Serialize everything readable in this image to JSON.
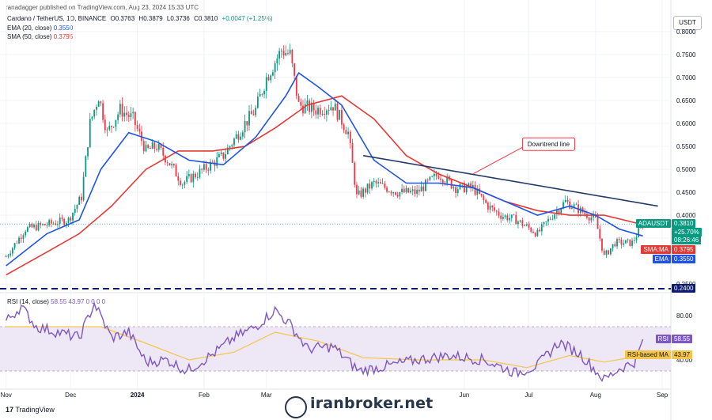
{
  "header": {
    "publisher": "ranadagger published on TradingView.com, Aug 23, 2024 15:33 UTC",
    "symbol": "Cardano / TetherUS, 1D, BINANCE",
    "open": "O0.3763",
    "high": "H0.3879",
    "low": "L0.3736",
    "close": "C0.3810",
    "change": "+0.0047 (+1.25%)",
    "ema_label": "EMA (20, close)",
    "ema_value": "0.3550",
    "sma_label": "SMA (50, close)",
    "sma_value": "0.3795",
    "currency_button": "USDT"
  },
  "colors": {
    "up": "#089981",
    "down": "#f23645",
    "ema": "#1e53e5",
    "sma": "#e53935",
    "rsi": "#7e57c2",
    "rsi_ma": "#f5c64a",
    "trendline": "#233b6b",
    "support": "#0c1b6e"
  },
  "chart_data": [
    {
      "type": "line",
      "title": "Cardano / TetherUS, 1D, BINANCE",
      "y_ticks": [
        "0.8000",
        "0.7500",
        "0.7000",
        "0.6500",
        "0.6000",
        "0.5500",
        "0.5000",
        "0.4500",
        "0.4000",
        "0.3500",
        "0.2500"
      ],
      "x_ticks": [
        "Nov",
        "Dec",
        "2024",
        "Feb",
        "Mar",
        "Jun",
        "Jul",
        "Aug",
        "Sep"
      ],
      "ylim": [
        0.24,
        0.8
      ],
      "price_path": [
        [
          "2023-11-01",
          0.31
        ],
        [
          "2023-11-10",
          0.37
        ],
        [
          "2023-11-20",
          0.38
        ],
        [
          "2023-11-30",
          0.39
        ],
        [
          "2023-12-06",
          0.44
        ],
        [
          "2023-12-10",
          0.6
        ],
        [
          "2023-12-14",
          0.66
        ],
        [
          "2023-12-18",
          0.58
        ],
        [
          "2023-12-24",
          0.63
        ],
        [
          "2023-12-30",
          0.61
        ],
        [
          "2024-01-05",
          0.54
        ],
        [
          "2024-01-10",
          0.55
        ],
        [
          "2024-01-15",
          0.52
        ],
        [
          "2024-01-22",
          0.47
        ],
        [
          "2024-02-01",
          0.5
        ],
        [
          "2024-02-10",
          0.53
        ],
        [
          "2024-02-20",
          0.6
        ],
        [
          "2024-02-25",
          0.63
        ],
        [
          "2024-03-01",
          0.7
        ],
        [
          "2024-03-08",
          0.76
        ],
        [
          "2024-03-12",
          0.75
        ],
        [
          "2024-03-16",
          0.64
        ],
        [
          "2024-03-24",
          0.63
        ],
        [
          "2024-04-01",
          0.64
        ],
        [
          "2024-04-08",
          0.58
        ],
        [
          "2024-04-12",
          0.44
        ],
        [
          "2024-04-20",
          0.47
        ],
        [
          "2024-05-01",
          0.45
        ],
        [
          "2024-05-10",
          0.45
        ],
        [
          "2024-05-20",
          0.49
        ],
        [
          "2024-05-28",
          0.46
        ],
        [
          "2024-06-05",
          0.46
        ],
        [
          "2024-06-12",
          0.42
        ],
        [
          "2024-06-18",
          0.4
        ],
        [
          "2024-06-25",
          0.39
        ],
        [
          "2024-07-05",
          0.36
        ],
        [
          "2024-07-12",
          0.4
        ],
        [
          "2024-07-18",
          0.43
        ],
        [
          "2024-07-25",
          0.41
        ],
        [
          "2024-08-01",
          0.39
        ],
        [
          "2024-08-05",
          0.31
        ],
        [
          "2024-08-10",
          0.34
        ],
        [
          "2024-08-18",
          0.34
        ],
        [
          "2024-08-23",
          0.381
        ]
      ],
      "series": [
        {
          "name": "EMA",
          "points": [
            [
              "2023-11-01",
              0.29
            ],
            [
              "2023-11-20",
              0.36
            ],
            [
              "2023-12-05",
              0.39
            ],
            [
              "2023-12-15",
              0.5
            ],
            [
              "2023-12-28",
              0.58
            ],
            [
              "2024-01-10",
              0.56
            ],
            [
              "2024-01-25",
              0.52
            ],
            [
              "2024-02-10",
              0.51
            ],
            [
              "2024-02-25",
              0.57
            ],
            [
              "2024-03-10",
              0.66
            ],
            [
              "2024-03-16",
              0.71
            ],
            [
              "2024-03-25",
              0.68
            ],
            [
              "2024-04-05",
              0.64
            ],
            [
              "2024-04-20",
              0.52
            ],
            [
              "2024-05-05",
              0.47
            ],
            [
              "2024-05-20",
              0.47
            ],
            [
              "2024-06-05",
              0.46
            ],
            [
              "2024-06-20",
              0.43
            ],
            [
              "2024-07-05",
              0.4
            ],
            [
              "2024-07-20",
              0.42
            ],
            [
              "2024-08-01",
              0.4
            ],
            [
              "2024-08-12",
              0.37
            ],
            [
              "2024-08-23",
              0.355
            ]
          ]
        },
        {
          "name": "SMA",
          "points": [
            [
              "2023-11-01",
              0.27
            ],
            [
              "2023-11-20",
              0.32
            ],
            [
              "2023-12-05",
              0.36
            ],
            [
              "2023-12-20",
              0.42
            ],
            [
              "2024-01-05",
              0.5
            ],
            [
              "2024-01-20",
              0.54
            ],
            [
              "2024-02-05",
              0.54
            ],
            [
              "2024-02-20",
              0.55
            ],
            [
              "2024-03-05",
              0.59
            ],
            [
              "2024-03-20",
              0.64
            ],
            [
              "2024-04-05",
              0.66
            ],
            [
              "2024-04-20",
              0.61
            ],
            [
              "2024-05-05",
              0.53
            ],
            [
              "2024-05-20",
              0.49
            ],
            [
              "2024-06-05",
              0.46
            ],
            [
              "2024-06-20",
              0.43
            ],
            [
              "2024-07-05",
              0.41
            ],
            [
              "2024-07-20",
              0.4
            ],
            [
              "2024-08-05",
              0.4
            ],
            [
              "2024-08-23",
              0.3795
            ]
          ]
        }
      ],
      "trendline": [
        [
          "2024-04-15",
          0.53
        ],
        [
          "2024-08-30",
          0.42
        ]
      ],
      "support_level": 0.24,
      "annotation": "Downtrend line",
      "price_tags": [
        {
          "label": "ADAUSDT",
          "value": "0.3810"
        },
        {
          "label": "",
          "value": "+25.70%"
        },
        {
          "label": "",
          "value": "08:26:46"
        },
        {
          "label": "SMA:MA",
          "value": "0.3795"
        },
        {
          "label": "EMA",
          "value": "0.3550"
        },
        {
          "label": "",
          "value": "0.2400"
        }
      ]
    },
    {
      "type": "line",
      "title": "RSI (14, close)",
      "legend_values": "58.55  43.97  0  0  0  0",
      "y_ticks": [
        "80.00",
        "40.00"
      ],
      "ylim": [
        15,
        95
      ],
      "band": [
        30,
        70
      ],
      "series": [
        {
          "name": "RSI",
          "points": [
            [
              "2023-11-01",
              75
            ],
            [
              "2023-11-08",
              88
            ],
            [
              "2023-11-15",
              70
            ],
            [
              "2023-11-25",
              65
            ],
            [
              "2023-12-05",
              60
            ],
            [
              "2023-12-12",
              91
            ],
            [
              "2023-12-20",
              60
            ],
            [
              "2023-12-28",
              65
            ],
            [
              "2024-01-05",
              38
            ],
            [
              "2024-01-15",
              40
            ],
            [
              "2024-01-24",
              30
            ],
            [
              "2024-02-05",
              45
            ],
            [
              "2024-02-15",
              60
            ],
            [
              "2024-02-25",
              70
            ],
            [
              "2024-03-05",
              85
            ],
            [
              "2024-03-12",
              72
            ],
            [
              "2024-03-20",
              50
            ],
            [
              "2024-04-01",
              52
            ],
            [
              "2024-04-13",
              30
            ],
            [
              "2024-04-25",
              34
            ],
            [
              "2024-05-10",
              40
            ],
            [
              "2024-05-25",
              44
            ],
            [
              "2024-06-10",
              40
            ],
            [
              "2024-06-25",
              28
            ],
            [
              "2024-07-05",
              35
            ],
            [
              "2024-07-15",
              56
            ],
            [
              "2024-07-25",
              45
            ],
            [
              "2024-08-05",
              22
            ],
            [
              "2024-08-12",
              32
            ],
            [
              "2024-08-19",
              38
            ],
            [
              "2024-08-23",
              58.55
            ]
          ]
        },
        {
          "name": "RSI-based MA",
          "points": [
            [
              "2023-11-01",
              70
            ],
            [
              "2023-11-25",
              70
            ],
            [
              "2023-12-15",
              70
            ],
            [
              "2024-01-05",
              55
            ],
            [
              "2024-01-25",
              40
            ],
            [
              "2024-02-15",
              47
            ],
            [
              "2024-03-05",
              65
            ],
            [
              "2024-03-25",
              57
            ],
            [
              "2024-04-15",
              42
            ],
            [
              "2024-05-10",
              40
            ],
            [
              "2024-06-10",
              40
            ],
            [
              "2024-06-30",
              33
            ],
            [
              "2024-07-20",
              44
            ],
            [
              "2024-08-05",
              38
            ],
            [
              "2024-08-23",
              43.97
            ]
          ]
        }
      ],
      "price_tags": [
        {
          "label": "RSI",
          "value": "58.55"
        },
        {
          "label": "RSI-based MA",
          "value": "43.97"
        }
      ]
    }
  ],
  "footer": {
    "brand": "TradingView",
    "watermark": "iranbroker.net"
  }
}
